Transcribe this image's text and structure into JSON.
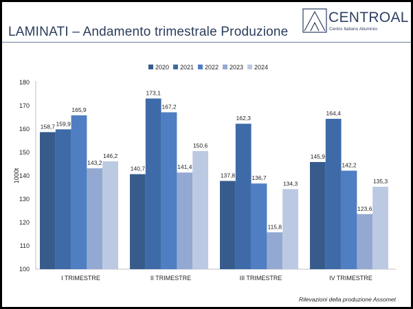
{
  "header": {
    "title": "LAMINATI – Andamento trimestrale Produzione",
    "logo_name": "CENTROAL",
    "logo_subtitle": "Centro Italiano Alluminio",
    "logo_icon": "triangle-logo-icon"
  },
  "footer": {
    "source": "Rilevazioni della produzione Assomet"
  },
  "colors": {
    "2020": "#375c8c",
    "2021": "#3e6ba8",
    "2022": "#4f7fc2",
    "2023": "#93a9d1",
    "2024": "#bcc9e2",
    "title": "#2a3c5c",
    "grid": "#cccccc"
  },
  "chart_data": {
    "type": "bar",
    "categories": [
      "I TRIMESTRE",
      "II TRIMESTRE",
      "III TRIMESTRE",
      "IV TRIMESTRE"
    ],
    "series": [
      {
        "name": "2020",
        "values": [
          158.7,
          140.7,
          137.8,
          145.9
        ],
        "labels": [
          "158,7",
          "140,7",
          "137,8",
          "145,9"
        ]
      },
      {
        "name": "2021",
        "values": [
          159.9,
          173.1,
          162.3,
          164.4
        ],
        "labels": [
          "159,9",
          "173,1",
          "162,3",
          "164,4"
        ]
      },
      {
        "name": "2022",
        "values": [
          165.9,
          167.2,
          136.7,
          142.2
        ],
        "labels": [
          "165,9",
          "167,2",
          "136,7",
          "142,2"
        ]
      },
      {
        "name": "2023",
        "values": [
          143.2,
          141.4,
          115.8,
          123.6
        ],
        "labels": [
          "143,2",
          "141,4",
          "115,8",
          "123,6"
        ]
      },
      {
        "name": "2024",
        "values": [
          146.2,
          150.6,
          134.3,
          135.3
        ],
        "labels": [
          "146,2",
          "150,6",
          "134,3",
          "135,3"
        ]
      }
    ],
    "title": "",
    "xlabel": "",
    "ylabel": "1000t",
    "ylim": [
      100,
      180
    ],
    "yticks": [
      100,
      110,
      120,
      130,
      140,
      150,
      160,
      170,
      180
    ],
    "legend_position": "top",
    "grid": false
  }
}
